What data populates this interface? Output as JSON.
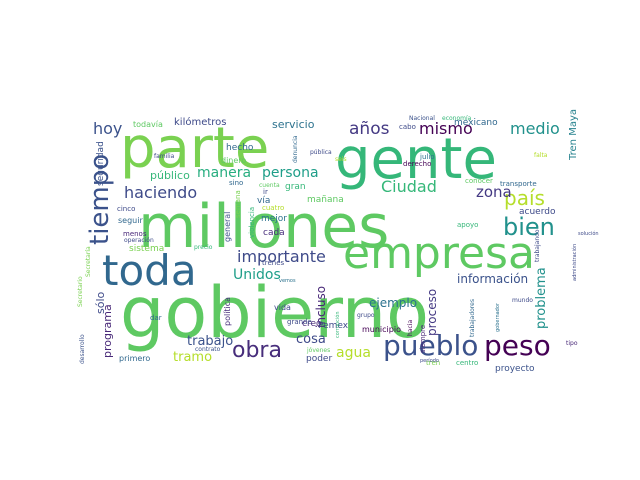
{
  "words": [
    {
      "text": "gobierno",
      "color": "#5ec962"
    },
    {
      "text": "millones",
      "color": "#5ec962"
    },
    {
      "text": "gente",
      "color": "#35b779"
    },
    {
      "text": "parte",
      "color": "#7ad151"
    },
    {
      "text": "empresa",
      "color": "#5ec962"
    },
    {
      "text": "toda",
      "color": "#31688e"
    },
    {
      "text": "pueblo",
      "color": "#3b528b"
    },
    {
      "text": "peso",
      "color": "#440154"
    },
    {
      "text": "obra",
      "color": "#472d7b"
    },
    {
      "text": "bien",
      "color": "#21918c"
    },
    {
      "text": "país",
      "color": "#b5de2b"
    },
    {
      "text": "tiempo",
      "color": "#3b528b"
    },
    {
      "text": "haciendo",
      "color": "#3e4a89"
    },
    {
      "text": "importante",
      "color": "#3e4a89"
    },
    {
      "text": "hoy",
      "color": "#3b528b"
    },
    {
      "text": "años",
      "color": "#443983"
    },
    {
      "text": "mismo",
      "color": "#440154"
    },
    {
      "text": "medio",
      "color": "#21918c"
    },
    {
      "text": "Ciudad",
      "color": "#35b779"
    },
    {
      "text": "zona",
      "color": "#443983"
    },
    {
      "text": "manera",
      "color": "#28ae80"
    },
    {
      "text": "persona",
      "color": "#1f9e89"
    },
    {
      "text": "Unidos",
      "color": "#1f9e89"
    },
    {
      "text": "trabajo",
      "color": "#3b528b"
    },
    {
      "text": "cosa",
      "color": "#3e4a89"
    },
    {
      "text": "agua",
      "color": "#b5de2b"
    },
    {
      "text": "ejemplo",
      "color": "#2c728e"
    },
    {
      "text": "información",
      "color": "#3b528b"
    },
    {
      "text": "problema",
      "color": "#21918c"
    },
    {
      "text": "programa",
      "color": "#482878"
    },
    {
      "text": "sólo",
      "color": "#3e4a89"
    },
    {
      "text": "incluso",
      "color": "#482878"
    },
    {
      "text": "proceso",
      "color": "#443983"
    },
    {
      "text": "público",
      "color": "#35b779"
    },
    {
      "text": "servicio",
      "color": "#2c728e"
    },
    {
      "text": "kilómetros",
      "color": "#3e4a89"
    },
    {
      "text": "mexicano",
      "color": "#31688e"
    },
    {
      "text": "acuerdo",
      "color": "#3e4a89"
    },
    {
      "text": "proyecto",
      "color": "#3b528b"
    },
    {
      "text": "tramo",
      "color": "#b5de2b"
    },
    {
      "text": "Tren Maya",
      "color": "#26828e"
    },
    {
      "text": "vía",
      "color": "#31688e"
    },
    {
      "text": "gran",
      "color": "#35b779"
    },
    {
      "text": "cada",
      "color": "#472d7b"
    },
    {
      "text": "mejor",
      "color": "#2c728e"
    },
    {
      "text": "hecho",
      "color": "#31688e"
    },
    {
      "text": "general",
      "color": "#3b528b"
    },
    {
      "text": "seguridad",
      "color": "#3b528b"
    },
    {
      "text": "Pemex",
      "color": "#3e4a89"
    },
    {
      "text": "creo",
      "color": "#482878"
    },
    {
      "text": "mañana",
      "color": "#5ec962"
    },
    {
      "text": "sistema",
      "color": "#7ad151"
    },
    {
      "text": "municipio",
      "color": "#440154"
    },
    {
      "text": "poder",
      "color": "#3e4a89"
    },
    {
      "text": "primero",
      "color": "#31688e"
    },
    {
      "text": "todavía",
      "color": "#5ec962"
    },
    {
      "text": "dinero",
      "color": "#5ec962"
    },
    {
      "text": "seguir",
      "color": "#31688e"
    },
    {
      "text": "trenes",
      "color": "#3e4a89"
    },
    {
      "text": "política",
      "color": "#472d7b"
    },
    {
      "text": "vida",
      "color": "#3e4a89"
    },
    {
      "text": "grande",
      "color": "#3e4a89"
    },
    {
      "text": "siempre",
      "color": "#482878"
    },
    {
      "text": "centro",
      "color": "#35b779"
    },
    {
      "text": "tren",
      "color": "#7ad151"
    },
    {
      "text": "conocer",
      "color": "#5ec962"
    },
    {
      "text": "apoyo",
      "color": "#35b779"
    },
    {
      "text": "transporte",
      "color": "#31688e"
    },
    {
      "text": "derecho",
      "color": "#440154"
    },
    {
      "text": "cabo",
      "color": "#3e4a89"
    },
    {
      "text": "julio",
      "color": "#2c728e"
    },
    {
      "text": "falta",
      "color": "#b5de2b"
    },
    {
      "text": "Nacional",
      "color": "#3b528b"
    },
    {
      "text": "economía",
      "color": "#35b779"
    },
    {
      "text": "sino",
      "color": "#31688e"
    },
    {
      "text": "cuenta",
      "color": "#5ec962"
    },
    {
      "text": "ir",
      "color": "#3e4a89"
    },
    {
      "text": "cuatro",
      "color": "#b5de2b"
    },
    {
      "text": "semana",
      "color": "#7ad151"
    },
    {
      "text": "violencia",
      "color": "#35b779"
    },
    {
      "text": "cinco",
      "color": "#3e4a89"
    },
    {
      "text": "menos",
      "color": "#482878"
    },
    {
      "text": "operación",
      "color": "#3e4a89"
    },
    {
      "text": "familia",
      "color": "#3e4a89"
    },
    {
      "text": "denuncia",
      "color": "#31688e"
    },
    {
      "text": "pública",
      "color": "#3e4a89"
    },
    {
      "text": "seis",
      "color": "#b5de2b"
    },
    {
      "text": "precio",
      "color": "#35b779"
    },
    {
      "text": "Secretaría",
      "color": "#7ad151"
    },
    {
      "text": "contrato",
      "color": "#3b528b"
    },
    {
      "text": "jóvenes",
      "color": "#5ec962"
    },
    {
      "text": "dar",
      "color": "#31688e"
    },
    {
      "text": "vemos",
      "color": "#2c728e"
    },
    {
      "text": "corrupción",
      "color": "#35b779"
    },
    {
      "text": "grupo",
      "color": "#3e4a89"
    },
    {
      "text": "hacia",
      "color": "#440154"
    },
    {
      "text": "período",
      "color": "#3e4a89"
    },
    {
      "text": "trabajadores",
      "color": "#31688e"
    },
    {
      "text": "gobernador",
      "color": "#2c728e"
    },
    {
      "text": "mundo",
      "color": "#3e4a89"
    },
    {
      "text": "tipo",
      "color": "#482878"
    },
    {
      "text": "trabajando",
      "color": "#3e4a89"
    },
    {
      "text": "administración",
      "color": "#3e4a89"
    },
    {
      "text": "desarrollo",
      "color": "#3b528b"
    },
    {
      "text": "Secretario",
      "color": "#7ad151"
    },
    {
      "text": "solución",
      "color": "#3e4a89"
    }
  ]
}
